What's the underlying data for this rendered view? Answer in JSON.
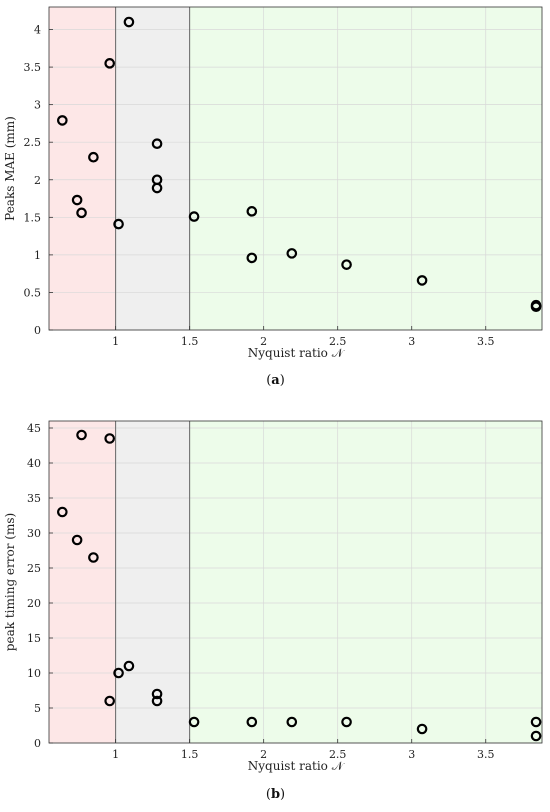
{
  "chart_data": [
    {
      "type": "scatter",
      "caption": "a",
      "xlabel": "Nyquist ratio 𝒩",
      "ylabel": "Peaks MAE (mm)",
      "xlim": [
        0.55,
        3.88
      ],
      "ylim": [
        0,
        4.3
      ],
      "x_ticks": [
        "1",
        "1.5",
        "2",
        "2.5",
        "3",
        "3.5"
      ],
      "x_tick_values": [
        1,
        1.5,
        2,
        2.5,
        3,
        3.5
      ],
      "y_ticks": [
        "0",
        "0.5",
        "1",
        "1.5",
        "2",
        "2.5",
        "3",
        "3.5",
        "4"
      ],
      "y_tick_values": [
        0,
        0.5,
        1,
        1.5,
        2,
        2.5,
        3,
        3.5,
        4
      ],
      "grid": true,
      "regions": [
        {
          "x0": 0.55,
          "x1": 1.0,
          "color": "#fde7e7",
          "line": "#666666"
        },
        {
          "x0": 1.0,
          "x1": 1.5,
          "color": "#efefef",
          "line": "#666666"
        },
        {
          "x0": 1.5,
          "x1": 3.88,
          "color": "#edfcea",
          "line": null
        }
      ],
      "points": [
        {
          "x": 0.64,
          "y": 2.79
        },
        {
          "x": 0.74,
          "y": 1.73
        },
        {
          "x": 0.77,
          "y": 1.56
        },
        {
          "x": 0.85,
          "y": 2.3
        },
        {
          "x": 0.96,
          "y": 3.55
        },
        {
          "x": 1.02,
          "y": 1.41
        },
        {
          "x": 1.09,
          "y": 4.1
        },
        {
          "x": 1.28,
          "y": 2.48
        },
        {
          "x": 1.28,
          "y": 2.0
        },
        {
          "x": 1.28,
          "y": 1.89
        },
        {
          "x": 1.53,
          "y": 1.51
        },
        {
          "x": 1.92,
          "y": 1.58
        },
        {
          "x": 1.92,
          "y": 0.96
        },
        {
          "x": 2.19,
          "y": 1.02
        },
        {
          "x": 2.56,
          "y": 0.87
        },
        {
          "x": 3.07,
          "y": 0.66
        },
        {
          "x": 3.84,
          "y": 0.33
        },
        {
          "x": 3.84,
          "y": 0.31
        }
      ]
    },
    {
      "type": "scatter",
      "caption": "b",
      "xlabel": "Nyquist ratio 𝒩",
      "ylabel": "peak timing error (ms)",
      "xlim": [
        0.55,
        3.88
      ],
      "ylim": [
        0,
        46
      ],
      "x_ticks": [
        "1",
        "1.5",
        "2",
        "2.5",
        "3",
        "3.5"
      ],
      "x_tick_values": [
        1,
        1.5,
        2,
        2.5,
        3,
        3.5
      ],
      "y_ticks": [
        "0",
        "5",
        "10",
        "15",
        "20",
        "25",
        "30",
        "35",
        "40",
        "45"
      ],
      "y_tick_values": [
        0,
        5,
        10,
        15,
        20,
        25,
        30,
        35,
        40,
        45
      ],
      "grid": true,
      "regions": [
        {
          "x0": 0.55,
          "x1": 1.0,
          "color": "#fde7e7",
          "line": "#666666"
        },
        {
          "x0": 1.0,
          "x1": 1.5,
          "color": "#efefef",
          "line": "#666666"
        },
        {
          "x0": 1.5,
          "x1": 3.88,
          "color": "#edfcea",
          "line": null
        }
      ],
      "points": [
        {
          "x": 0.64,
          "y": 33
        },
        {
          "x": 0.74,
          "y": 29
        },
        {
          "x": 0.77,
          "y": 44
        },
        {
          "x": 0.85,
          "y": 26.5
        },
        {
          "x": 0.96,
          "y": 43.5
        },
        {
          "x": 0.96,
          "y": 6
        },
        {
          "x": 1.02,
          "y": 10
        },
        {
          "x": 1.09,
          "y": 11
        },
        {
          "x": 1.28,
          "y": 7
        },
        {
          "x": 1.28,
          "y": 6
        },
        {
          "x": 1.53,
          "y": 3
        },
        {
          "x": 1.92,
          "y": 3
        },
        {
          "x": 2.19,
          "y": 3
        },
        {
          "x": 2.56,
          "y": 3
        },
        {
          "x": 3.07,
          "y": 2
        },
        {
          "x": 3.84,
          "y": 3
        },
        {
          "x": 3.84,
          "y": 1
        }
      ]
    }
  ]
}
